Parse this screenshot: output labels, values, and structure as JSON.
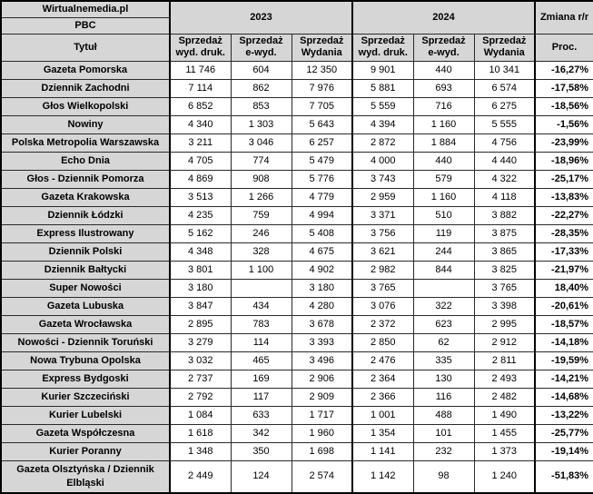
{
  "source": {
    "line1": "Wirtualnemedia.pl",
    "line2": "PBC"
  },
  "header": {
    "year_2023": "2023",
    "year_2024": "2024",
    "change_label": "Zmiana r/r",
    "title_col": "Tytuł",
    "sub_print": "Sprzedaż\nwyd. druk.",
    "sub_e": "Sprzedaż\ne-wyd.",
    "sub_total": "Sprzedaż\nWydania",
    "proc_label": "Proc."
  },
  "colors": {
    "header_bg": "#d6d6d6",
    "row_bg": "#ffffff",
    "border": "#2a2a2a",
    "outer_border": "#000000",
    "text": "#000000"
  },
  "chart_data": {
    "type": "table",
    "column_groups": [
      "2023",
      "2024"
    ],
    "columns": [
      "Tytuł",
      "Sprzedaż wyd. druk.",
      "Sprzedaż e-wyd.",
      "Sprzedaż Wydania",
      "Sprzedaż wyd. druk.",
      "Sprzedaż e-wyd.",
      "Sprzedaż Wydania",
      "Proc."
    ],
    "rows": [
      [
        "Gazeta Pomorska",
        "11 746",
        "604",
        "12 350",
        "9 901",
        "440",
        "10 341",
        "-16,27%"
      ],
      [
        "Dziennik Zachodni",
        "7 114",
        "862",
        "7 976",
        "5 881",
        "693",
        "6 574",
        "-17,58%"
      ],
      [
        "Głos Wielkopolski",
        "6 852",
        "853",
        "7 705",
        "5 559",
        "716",
        "6 275",
        "-18,56%"
      ],
      [
        "Nowiny",
        "4 340",
        "1 303",
        "5 643",
        "4 394",
        "1 160",
        "5 555",
        "-1,56%"
      ],
      [
        "Polska Metropolia Warszawska",
        "3 211",
        "3 046",
        "6 257",
        "2 872",
        "1 884",
        "4 756",
        "-23,99%"
      ],
      [
        "Echo Dnia",
        "4 705",
        "774",
        "5 479",
        "4 000",
        "440",
        "4 440",
        "-18,96%"
      ],
      [
        "Głos - Dziennik Pomorza",
        "4 869",
        "908",
        "5 776",
        "3 743",
        "579",
        "4 322",
        "-25,17%"
      ],
      [
        "Gazeta Krakowska",
        "3 513",
        "1 266",
        "4 779",
        "2 959",
        "1 160",
        "4 118",
        "-13,83%"
      ],
      [
        "Dziennik Łódzki",
        "4 235",
        "759",
        "4 994",
        "3 371",
        "510",
        "3 882",
        "-22,27%"
      ],
      [
        "Express Ilustrowany",
        "5 162",
        "246",
        "5 408",
        "3 756",
        "119",
        "3 875",
        "-28,35%"
      ],
      [
        "Dziennik Polski",
        "4 348",
        "328",
        "4 675",
        "3 621",
        "244",
        "3 865",
        "-17,33%"
      ],
      [
        "Dziennik Bałtycki",
        "3 801",
        "1 100",
        "4 902",
        "2 982",
        "844",
        "3 825",
        "-21,97%"
      ],
      [
        "Super Nowości",
        "3 180",
        "",
        "3 180",
        "3 765",
        "",
        "3 765",
        "18,40%"
      ],
      [
        "Gazeta Lubuska",
        "3 847",
        "434",
        "4 280",
        "3 076",
        "322",
        "3 398",
        "-20,61%"
      ],
      [
        "Gazeta Wrocławska",
        "2 895",
        "783",
        "3 678",
        "2 372",
        "623",
        "2 995",
        "-18,57%"
      ],
      [
        "Nowości - Dziennik Toruński",
        "3 279",
        "114",
        "3 393",
        "2 850",
        "62",
        "2 912",
        "-14,18%"
      ],
      [
        "Nowa Trybuna Opolska",
        "3 032",
        "465",
        "3 496",
        "2 476",
        "335",
        "2 811",
        "-19,59%"
      ],
      [
        "Express Bydgoski",
        "2 737",
        "169",
        "2 906",
        "2 364",
        "130",
        "2 493",
        "-14,21%"
      ],
      [
        "Kurier Szczeciński",
        "2 792",
        "117",
        "2 909",
        "2 366",
        "116",
        "2 482",
        "-14,68%"
      ],
      [
        "Kurier Lubelski",
        "1 084",
        "633",
        "1 717",
        "1 001",
        "488",
        "1 490",
        "-13,22%"
      ],
      [
        "Gazeta Współczesna",
        "1 618",
        "342",
        "1 960",
        "1 354",
        "101",
        "1 455",
        "-25,77%"
      ],
      [
        "Kurier Poranny",
        "1 348",
        "350",
        "1 698",
        "1 141",
        "232",
        "1 373",
        "-19,14%"
      ],
      [
        "Gazeta Olsztyńska / Dziennik Elbląski",
        "2 449",
        "124",
        "2 574",
        "1 142",
        "98",
        "1 240",
        "-51,83%"
      ]
    ]
  }
}
